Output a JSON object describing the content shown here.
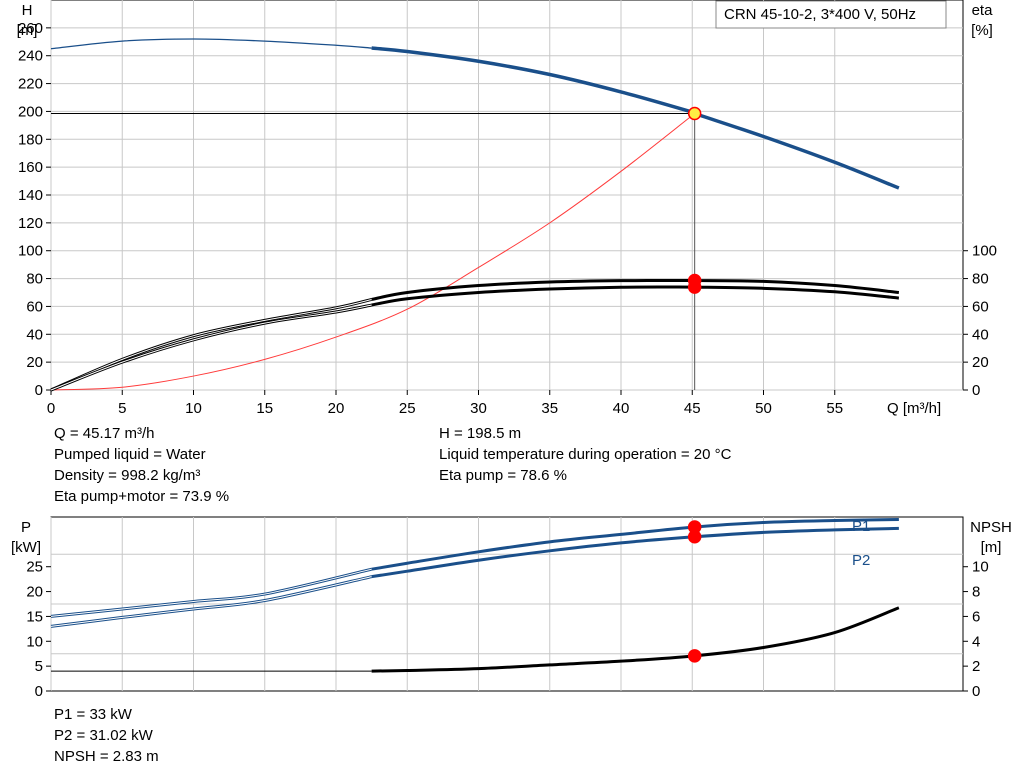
{
  "title_box": "CRN 45-10-2, 3*400 V, 50Hz",
  "top": {
    "h_axis": {
      "name": "H",
      "unit": "[m]",
      "ticks": [
        0,
        20,
        40,
        60,
        80,
        100,
        120,
        140,
        160,
        180,
        200,
        220,
        240,
        260
      ]
    },
    "eta_axis": {
      "name": "eta",
      "unit": "[%]",
      "ticks": [
        0,
        20,
        40,
        60,
        80,
        100
      ]
    },
    "q_axis": {
      "ticks": [
        0,
        5,
        10,
        15,
        20,
        25,
        30,
        35,
        40,
        45,
        50,
        55
      ],
      "label": "Q [m³/h]"
    }
  },
  "info_top": {
    "left": [
      "Q = 45.17 m³/h",
      "Pumped liquid = Water",
      "Density = 998.2 kg/m³",
      "Eta pump+motor = 73.9 %"
    ],
    "right": [
      "H = 198.5 m",
      "Liquid temperature during operation = 20 °C",
      "Eta pump = 78.6 %"
    ]
  },
  "bottom": {
    "p_axis": {
      "name": "P",
      "unit": "[kW]",
      "ticks": [
        0,
        5,
        10,
        15,
        20,
        25
      ]
    },
    "npsh_axis": {
      "name": "NPSH",
      "unit": "[m]",
      "ticks": [
        0,
        2,
        4,
        6,
        8,
        10
      ]
    },
    "labels": {
      "p1": "P1",
      "p2": "P2"
    }
  },
  "info_bottom": [
    "P1 = 33 kW",
    "P2 = 31.02 kW",
    "NPSH = 2.83 m"
  ],
  "colors": {
    "head": "#1a4f8a",
    "efficiency": "#000000",
    "system": "#ff3b3b",
    "point": "#ff0000",
    "duty_point": "#ffee44",
    "grid": "#c8c8c8"
  },
  "chart_data": [
    {
      "type": "line",
      "title": "CRN 45-10-2, 3*400 V, 50Hz",
      "xlabel": "Q [m³/h]",
      "ylabel": "H [m]",
      "y2label": "eta [%]",
      "xlim": [
        0,
        64
      ],
      "ylim": [
        0,
        280
      ],
      "y2lim": [
        0,
        280
      ],
      "grid": true,
      "operating_range_start_q": 22.5,
      "duty_point": {
        "q": 45.17,
        "h": 198.5,
        "eta_pump": 78.6,
        "eta_pump_motor": 73.9
      },
      "series": [
        {
          "axis": "left",
          "color": "#1a4f8a",
          "x": [
            0,
            5,
            10,
            15,
            20,
            22.5,
            25,
            30,
            35,
            40,
            45,
            45.17,
            50,
            55,
            59.5
          ],
          "y": [
            245,
            250.5,
            252,
            250.5,
            247.5,
            245.5,
            243,
            236,
            226.5,
            214,
            199.5,
            198.5,
            182,
            163.5,
            145
          ]
        },
        {
          "axis": "right",
          "color": "#000000",
          "x": [
            0,
            5,
            10,
            15,
            20,
            22.5,
            25,
            30,
            35,
            40,
            45,
            45.17,
            50,
            55,
            59.5
          ],
          "y": [
            0,
            22,
            39,
            50,
            59,
            65,
            70,
            75,
            77.5,
            78.5,
            78.6,
            78.6,
            78,
            75,
            70
          ]
        },
        {
          "axis": "right",
          "color": "#000000",
          "x": [
            0,
            5,
            10,
            15,
            20,
            22.5,
            25,
            30,
            35,
            40,
            45,
            45.17,
            50,
            55,
            59.5
          ],
          "y": [
            0,
            20,
            36,
            48,
            56,
            61,
            65.5,
            70,
            72.5,
            73.8,
            73.9,
            73.9,
            73,
            70.5,
            66
          ]
        },
        {
          "axis": "left",
          "color": "#ff3b3b",
          "x": [
            0,
            5,
            10,
            15,
            20,
            25,
            30,
            35,
            40,
            45.17
          ],
          "y": [
            0,
            2,
            10,
            22,
            38,
            58,
            88,
            120,
            157,
            198.5
          ]
        }
      ]
    },
    {
      "type": "line",
      "xlabel": "Q [m³/h]",
      "ylabel": "P [kW]",
      "y2label": "NPSH [m]",
      "xlim": [
        0,
        64
      ],
      "ylim": [
        0,
        35
      ],
      "y2lim": [
        0,
        14
      ],
      "grid": true,
      "operating_range_start_q": 22.5,
      "duty_point": {
        "q": 45.17,
        "p1": 33,
        "p2": 31.02,
        "npsh": 2.83
      },
      "series": [
        {
          "name": "P1",
          "axis": "left",
          "color": "#1a4f8a",
          "x": [
            0,
            5,
            10,
            15,
            22.5,
            25,
            30,
            35,
            40,
            45.17,
            50,
            55,
            59.5
          ],
          "y": [
            15,
            16.5,
            18,
            19.5,
            24.5,
            25.7,
            28,
            30,
            31.5,
            33,
            33.9,
            34.3,
            34.5
          ]
        },
        {
          "name": "P2",
          "axis": "left",
          "color": "#1a4f8a",
          "x": [
            0,
            5,
            10,
            15,
            22.5,
            25,
            30,
            35,
            40,
            45.17,
            50,
            55,
            59.5
          ],
          "y": [
            13,
            14.8,
            16.5,
            18.2,
            23,
            24.1,
            26.3,
            28.2,
            29.8,
            31.02,
            31.9,
            32.4,
            32.7
          ]
        },
        {
          "axis": "right",
          "color": "#000000",
          "x": [
            0,
            22.5,
            25,
            30,
            35,
            40,
            45.17,
            50,
            55,
            59.5
          ],
          "y": [
            1.6,
            1.6,
            1.65,
            1.8,
            2.1,
            2.4,
            2.83,
            3.5,
            4.7,
            6.7
          ]
        }
      ]
    }
  ]
}
